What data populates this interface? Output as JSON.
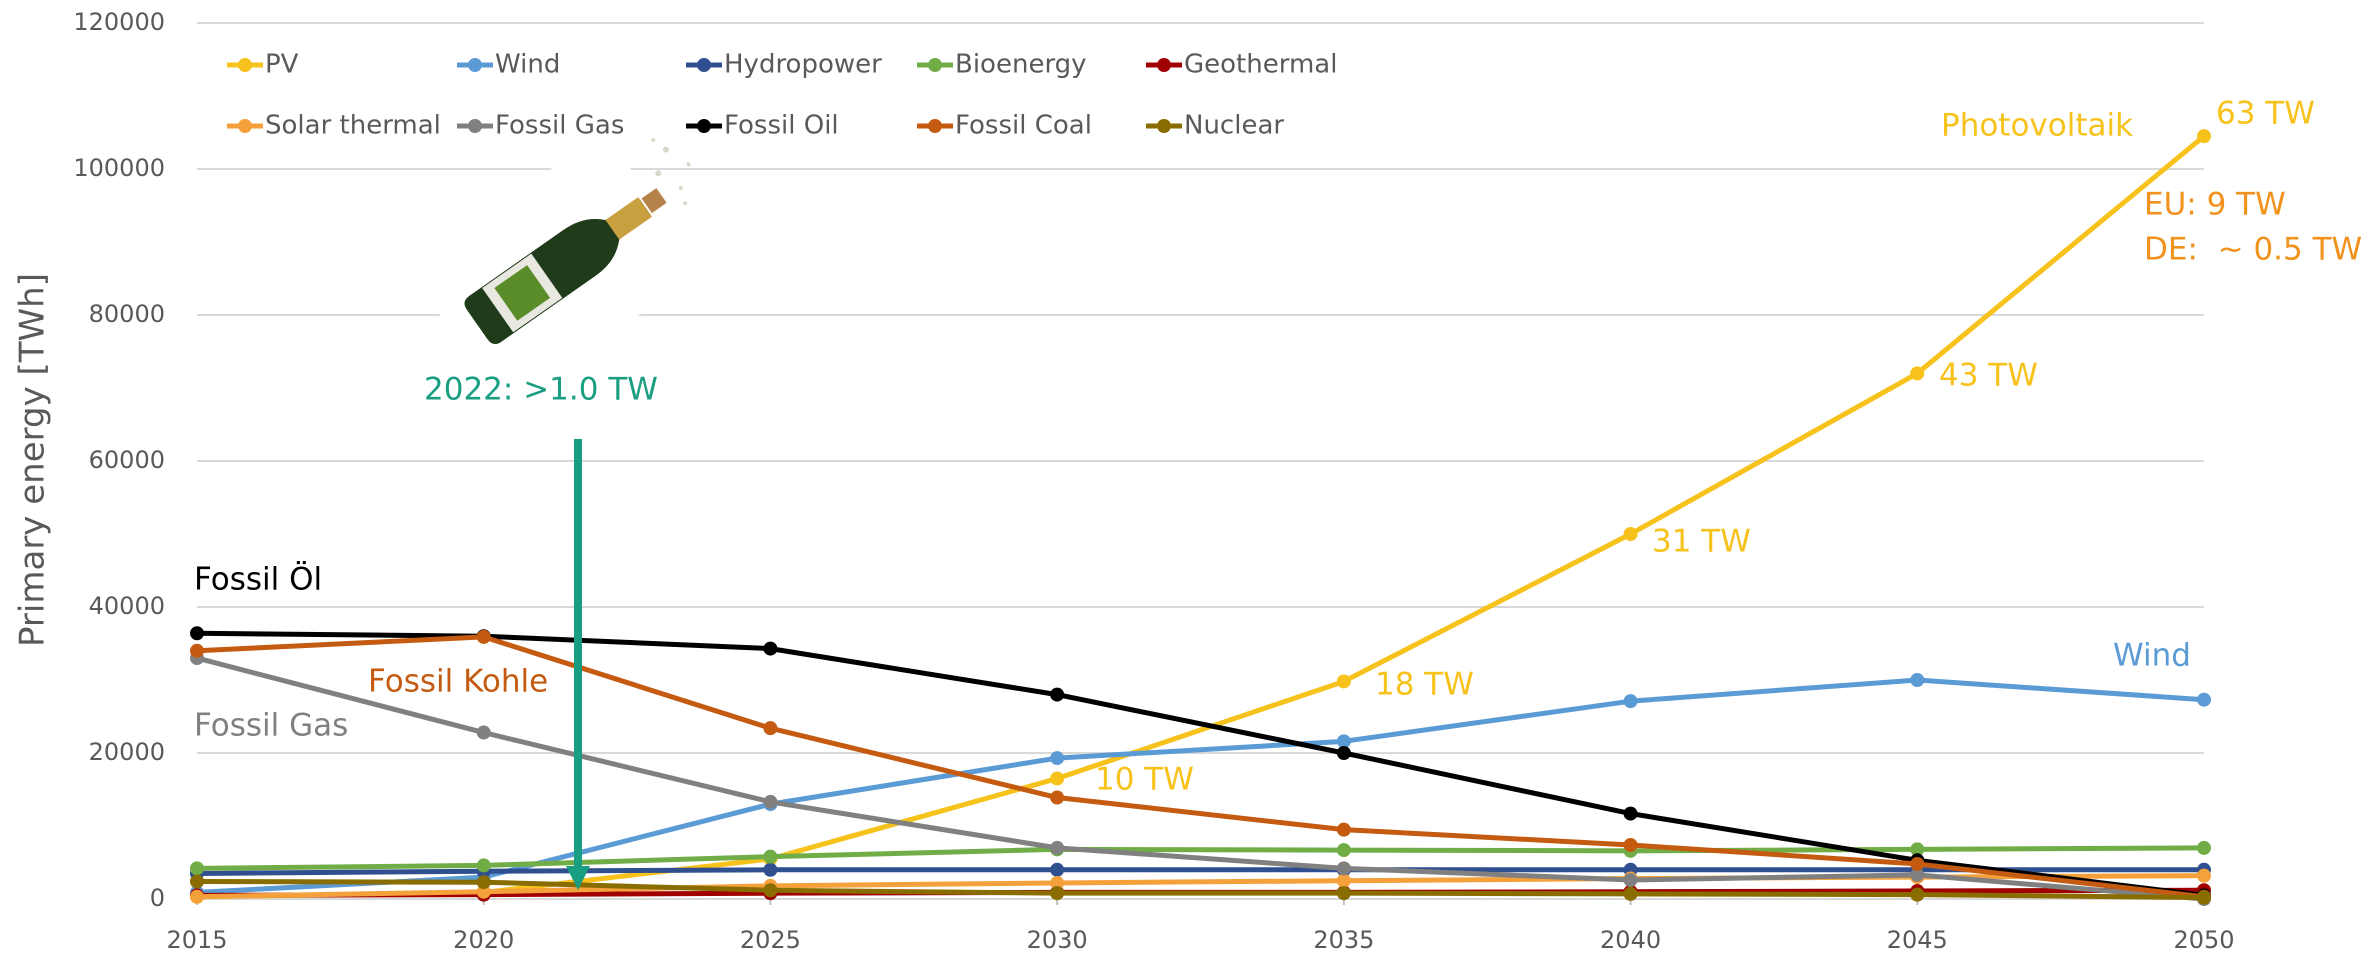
{
  "chart_data": {
    "type": "line",
    "y_label": "Primary energy [TWh]",
    "x": [
      2015,
      2020,
      2025,
      2030,
      2035,
      2040,
      2045,
      2050
    ],
    "xlim": [
      2015,
      2050
    ],
    "xticks": [
      2015,
      2020,
      2025,
      2030,
      2035,
      2040,
      2045,
      2050
    ],
    "ylim": [
      0,
      120000
    ],
    "yticks": [
      0,
      20000,
      40000,
      60000,
      80000,
      100000,
      120000
    ],
    "grid": true,
    "legend": "top-left",
    "series": [
      {
        "name": "PV",
        "color": "#f6c21b",
        "values": [
          300,
          900,
          5500,
          16500,
          29800,
          50000,
          72000,
          104500
        ]
      },
      {
        "name": "Wind",
        "color": "#5b9bd5",
        "values": [
          900,
          3000,
          13000,
          19300,
          21600,
          27100,
          30000,
          27300
        ]
      },
      {
        "name": "Hydropower",
        "color": "#2f4f8f",
        "values": [
          3500,
          3800,
          4000,
          4000,
          4000,
          4000,
          4000,
          4000
        ]
      },
      {
        "name": "Bioenergy",
        "color": "#70ad47",
        "values": [
          4200,
          4600,
          5800,
          6800,
          6700,
          6600,
          6800,
          7000
        ]
      },
      {
        "name": "Geothermal",
        "color": "#a00000",
        "values": [
          500,
          600,
          800,
          900,
          900,
          1000,
          1100,
          1200
        ]
      },
      {
        "name": "Solar thermal",
        "color": "#f5a13b",
        "values": [
          300,
          1000,
          1800,
          2200,
          2500,
          2800,
          3000,
          3200
        ]
      },
      {
        "name": "Fossil Gas",
        "color": "#808080",
        "values": [
          33000,
          22800,
          13300,
          7000,
          4200,
          2600,
          3300,
          0
        ]
      },
      {
        "name": "Fossil Oil",
        "color": "#000000",
        "values": [
          36400,
          36000,
          34300,
          28000,
          20000,
          11700,
          5300,
          500
        ]
      },
      {
        "name": "Fossil Coal",
        "color": "#c55a11",
        "values": [
          34000,
          35900,
          23400,
          13900,
          9500,
          7400,
          4800,
          300
        ]
      },
      {
        "name": "Nuclear",
        "color": "#8a6d00",
        "values": [
          2400,
          2300,
          1200,
          800,
          800,
          700,
          600,
          200
        ]
      }
    ],
    "annotations": [
      "Photovoltaik",
      "63 TW",
      "EU: 9 TW",
      "DE:  ~ 0.5 TW",
      "43 TW",
      "31 TW",
      "18 TW",
      "10 TW",
      "Wind",
      "Fossil Öl",
      "Fossil Kohle",
      "Fossil Gas",
      "2022: >1.0 TW"
    ]
  }
}
